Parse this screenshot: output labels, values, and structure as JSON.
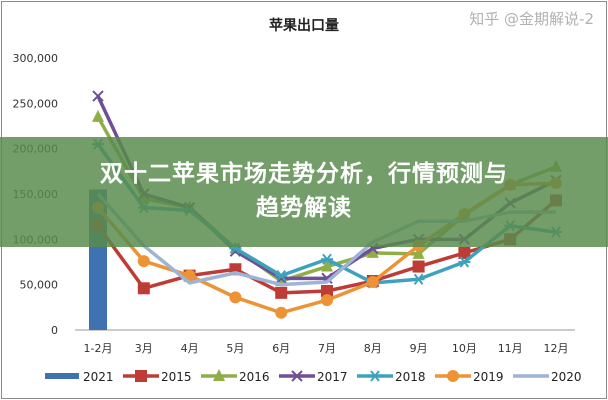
{
  "chart_data": {
    "type": "line",
    "title": "苹果出口量",
    "xlabel": "",
    "ylabel": "",
    "categories": [
      "1-2月",
      "3月",
      "4月",
      "5月",
      "6月",
      "7月",
      "8月",
      "9月",
      "10月",
      "11月",
      "12月"
    ],
    "ylim": [
      0,
      300000
    ],
    "yticks": [
      "0",
      "50,000",
      "100,000",
      "150,000",
      "200,000",
      "250,000",
      "300,000"
    ],
    "ytick_values": [
      0,
      50000,
      100000,
      150000,
      200000,
      250000,
      300000
    ],
    "grid": false,
    "legend_position": "bottom",
    "series": [
      {
        "name": "2021",
        "kind": "bar",
        "color": "#3e72b0",
        "values": [
          155000,
          null,
          null,
          null,
          null,
          null,
          null,
          null,
          null,
          null,
          null
        ]
      },
      {
        "name": "2015",
        "kind": "line",
        "marker": "square",
        "color": "#be3b36",
        "values": [
          115000,
          46000,
          60000,
          67000,
          41000,
          43000,
          54000,
          70000,
          85000,
          100000,
          143000
        ]
      },
      {
        "name": "2016",
        "kind": "line",
        "marker": "triangle",
        "color": "#8fae48",
        "values": [
          235000,
          145000,
          135000,
          90000,
          54000,
          70000,
          85000,
          84000,
          127000,
          160000,
          180000
        ]
      },
      {
        "name": "2017",
        "kind": "line",
        "marker": "x",
        "color": "#6f4f96",
        "values": [
          258000,
          150000,
          135000,
          87000,
          57000,
          57000,
          90000,
          100000,
          100000,
          140000,
          165000
        ]
      },
      {
        "name": "2018",
        "kind": "line",
        "marker": "star",
        "color": "#3fa2bd",
        "values": [
          205000,
          135000,
          132000,
          90000,
          60000,
          78000,
          52000,
          56000,
          75000,
          115000,
          108000
        ]
      },
      {
        "name": "2019",
        "kind": "line",
        "marker": "circle",
        "color": "#ee9236",
        "values": [
          135000,
          76000,
          60000,
          36000,
          19000,
          33000,
          53000,
          93000,
          128000,
          160000,
          162000
        ]
      },
      {
        "name": "2020",
        "kind": "line",
        "marker": "none",
        "color": "#9db4d6",
        "values": [
          150000,
          93000,
          52000,
          63000,
          50000,
          53000,
          97000,
          120000,
          120000,
          130000,
          130000
        ]
      }
    ]
  },
  "banner": {
    "line1": "双十二苹果市场走势分析，行情预测与",
    "line2": "趋势解读"
  },
  "watermark": "知乎 @金期解说-2"
}
